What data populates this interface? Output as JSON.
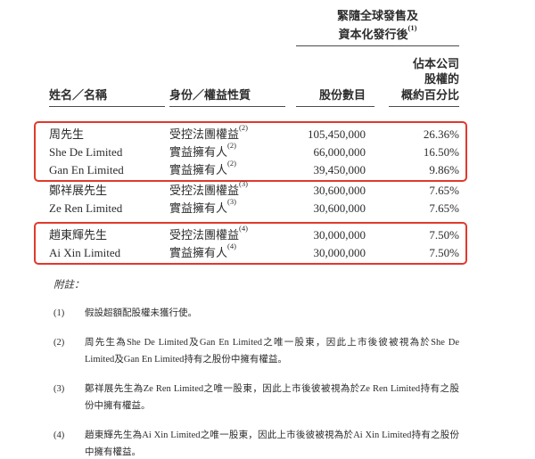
{
  "table": {
    "group_header": {
      "line1": "緊隨全球發售及",
      "line2": "資本化發行後",
      "sup": "(1)"
    },
    "subheader_lines": [
      "佔本公司",
      "股權的"
    ],
    "columns": {
      "name": "姓名／名稱",
      "capacity": "身份／權益性質",
      "shares": "股份數目",
      "percent": "概約百分比"
    },
    "rows": [
      {
        "name": "周先生",
        "capacity": "受控法團權益",
        "sup": "(2)",
        "shares": "105,450,000",
        "percent": "26.36%",
        "highlighted": true
      },
      {
        "name": "She De Limited",
        "capacity": "實益擁有人",
        "sup": "(2)",
        "shares": "66,000,000",
        "percent": "16.50%",
        "highlighted": true
      },
      {
        "name": "Gan En Limited",
        "capacity": "實益擁有人",
        "sup": "(2)",
        "shares": "39,450,000",
        "percent": "9.86%",
        "highlighted": true
      },
      {
        "name": "鄭祥展先生",
        "capacity": "受控法團權益",
        "sup": "(3)",
        "shares": "30,600,000",
        "percent": "7.65%",
        "highlighted": false
      },
      {
        "name": "Ze Ren Limited",
        "capacity": "實益擁有人",
        "sup": "(3)",
        "shares": "30,600,000",
        "percent": "7.65%",
        "highlighted": false
      },
      {
        "name": "趙東輝先生",
        "capacity": "受控法團權益",
        "sup": "(4)",
        "shares": "30,000,000",
        "percent": "7.50%",
        "highlighted": true
      },
      {
        "name": "Ai Xin Limited",
        "capacity": "實益擁有人",
        "sup": "(4)",
        "shares": "30,000,000",
        "percent": "7.50%",
        "highlighted": true
      }
    ]
  },
  "notes": {
    "label": "附註：",
    "items": [
      {
        "num": "(1)",
        "lines": [
          "假設超額配股權未獲行使。"
        ]
      },
      {
        "num": "(2)",
        "lines": [
          "周先生為She De Limited及Gan En Limited之唯一股東，因此上市後彼被視為於She De",
          "Limited及Gan En Limited持有之股份中擁有權益。"
        ]
      },
      {
        "num": "(3)",
        "lines": [
          "鄭祥展先生為Ze Ren Limited之唯一股東，因此上市後彼被視為於Ze Ren Limited持有之股",
          "份中擁有權益。"
        ]
      },
      {
        "num": "(4)",
        "lines": [
          "趙東輝先生為Ai Xin Limited之唯一股東，因此上市後彼被視為於Ai Xin Limited持有之股份",
          "中擁有權益。"
        ]
      }
    ]
  },
  "colors": {
    "highlight_red": "#e0392c",
    "text": "#2c2c2c",
    "rule": "#4a4a4a"
  }
}
